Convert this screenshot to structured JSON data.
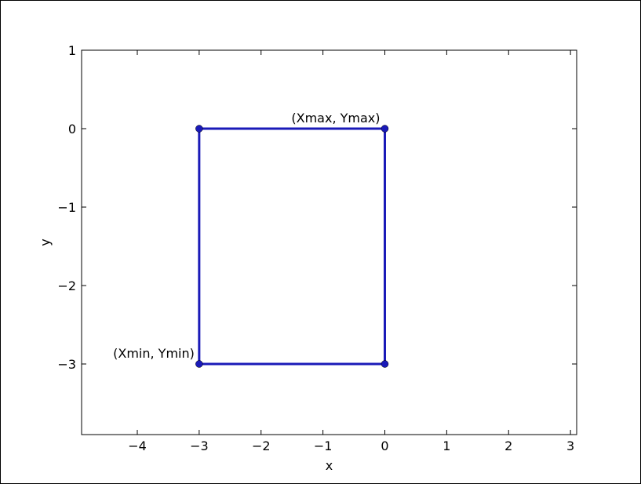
{
  "chart_data": {
    "type": "line",
    "xlabel": "x",
    "ylabel": "y",
    "xlim": [
      -4.9,
      3.1
    ],
    "ylim": [
      -3.9,
      1.0
    ],
    "xticks": [
      -4,
      -3,
      -2,
      -1,
      0,
      1,
      2,
      3
    ],
    "yticks": [
      1,
      0,
      -1,
      -2,
      -3
    ],
    "xtick_labels": [
      "−4",
      "−3",
      "−2",
      "−1",
      "0",
      "1",
      "2",
      "3"
    ],
    "ytick_labels": [
      "1",
      "0",
      "−1",
      "−2",
      "−3"
    ],
    "grid": false,
    "series": [
      {
        "color": "#1a1ab8",
        "x": [
          -3,
          0,
          0,
          -3,
          -3
        ],
        "y": [
          0,
          0,
          -3,
          -3,
          0
        ]
      }
    ],
    "annotations": [
      {
        "text": "(Xmax, Ymax)",
        "x": 0,
        "y": 0,
        "anchor": "end"
      },
      {
        "text": "(Xmin, Ymin)",
        "x": -3,
        "y": -3,
        "anchor": "end"
      }
    ]
  }
}
